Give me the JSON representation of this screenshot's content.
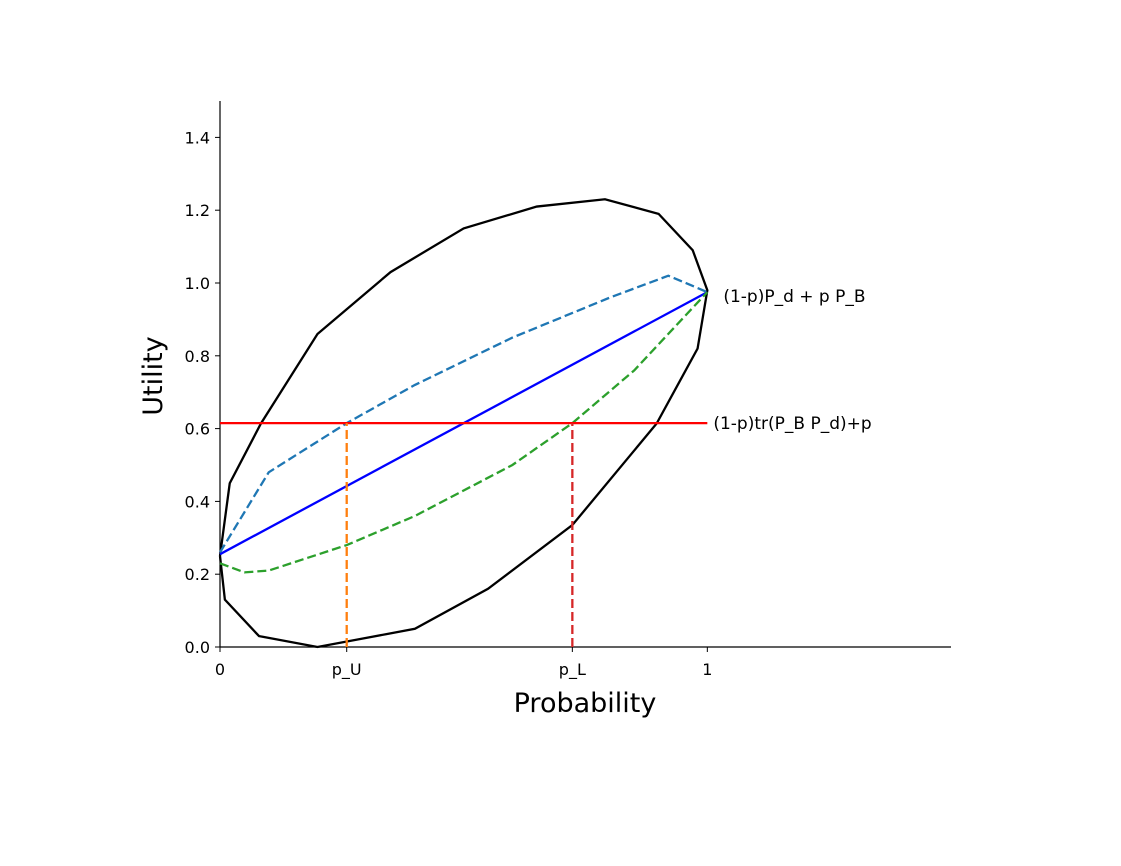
{
  "chart_data": {
    "type": "line",
    "xlabel": "Probability",
    "ylabel": "Utility",
    "xlim": [
      0,
      1.5
    ],
    "ylim": [
      0,
      1.5
    ],
    "xticks": [
      0,
      {
        "value": 0.26,
        "label": "p_U"
      },
      {
        "value": 0.723,
        "label": "p_L"
      },
      1
    ],
    "yticks": [
      {
        "value": 0,
        "label": "0.0"
      },
      {
        "value": 0.2,
        "label": "0.2"
      },
      {
        "value": 0.4,
        "label": "0.4"
      },
      {
        "value": 0.6,
        "label": "0.6"
      },
      {
        "value": 0.8,
        "label": "0.8"
      },
      {
        "value": 1.0,
        "label": "1.0"
      },
      {
        "value": 1.2,
        "label": "1.2"
      },
      {
        "value": 1.4,
        "label": "1.4"
      }
    ],
    "grid": false,
    "series": [
      {
        "color": "#000000",
        "style": "solid",
        "x": [
          0,
          0.02,
          0.084,
          0.2,
          0.35,
          0.5,
          0.65,
          0.79,
          0.9,
          0.97,
          1.0,
          0.98,
          0.896,
          0.723,
          0.55,
          0.4,
          0.2,
          0.08,
          0.01,
          0
        ],
        "values": [
          0.25,
          0.45,
          0.614,
          0.86,
          1.03,
          1.15,
          1.21,
          1.23,
          1.19,
          1.09,
          0.98,
          0.82,
          0.614,
          0.335,
          0.16,
          0.05,
          0.0,
          0.03,
          0.13,
          0.25
        ]
      },
      {
        "color": "#0000ff",
        "style": "solid",
        "x": [
          0,
          1
        ],
        "values": [
          0.255,
          0.975
        ]
      },
      {
        "color": "#1f77b4",
        "style": "dashed",
        "x": [
          0,
          0.1,
          0.26,
          0.4,
          0.6,
          0.8,
          0.92,
          1
        ],
        "values": [
          0.26,
          0.48,
          0.615,
          0.72,
          0.85,
          0.96,
          1.02,
          0.975
        ]
      },
      {
        "color": "#2ca02c",
        "style": "dashed",
        "x": [
          0,
          0.05,
          0.1,
          0.26,
          0.4,
          0.6,
          0.723,
          0.85,
          1
        ],
        "values": [
          0.23,
          0.205,
          0.21,
          0.28,
          0.36,
          0.5,
          0.615,
          0.76,
          0.975
        ]
      },
      {
        "color": "#ff0000",
        "style": "solid",
        "x": [
          0,
          1
        ],
        "values": [
          0.615,
          0.615
        ]
      },
      {
        "color": "#ff7f0e",
        "style": "dashed",
        "x": [
          0.26,
          0.26
        ],
        "values": [
          0,
          0.615
        ]
      },
      {
        "color": "#d62728",
        "style": "dashed",
        "x": [
          0.723,
          0.723
        ],
        "values": [
          0,
          0.615
        ]
      }
    ],
    "annotations": [
      {
        "text": "(1-p)P_d + p P_B",
        "series": 1
      },
      {
        "text": "(1-p)tr(P_B P_d)+p",
        "series": 4
      }
    ]
  }
}
